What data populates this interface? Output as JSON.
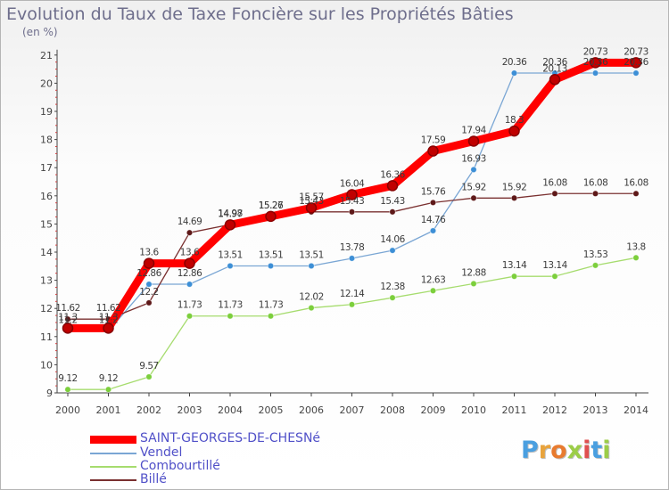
{
  "chart_data": {
    "type": "line",
    "title": "Evolution du Taux de Taxe Foncière sur les Propriétés Bâties",
    "unit_label": "(en %)",
    "x": [
      "2000",
      "2001",
      "2002",
      "2003",
      "2004",
      "2005",
      "2006",
      "2007",
      "2008",
      "2009",
      "2010",
      "2011",
      "2012",
      "2013",
      "2014"
    ],
    "ylim": [
      9,
      21
    ],
    "yticks": [
      9,
      10,
      11,
      12,
      13,
      14,
      15,
      16,
      17,
      18,
      19,
      20,
      21
    ],
    "grid": false,
    "legend_position": "bottom-left",
    "series": [
      {
        "name": "SAINT-GEORGES-DE-CHESNé",
        "color": "#ff0000",
        "marker": "#c00000",
        "values": [
          11.3,
          11.3,
          13.6,
          13.6,
          14.97,
          15.27,
          15.57,
          16.04,
          16.36,
          17.59,
          17.94,
          18.3,
          20.13,
          20.73,
          20.73
        ],
        "labels": [
          "11.3",
          "11.3",
          "13.6",
          "13.6",
          "14.97",
          "15.27",
          "15.57",
          "16.04",
          "16.36",
          "17.59",
          "17.94",
          "18.3",
          "20.13",
          "20.73",
          "20.73"
        ]
      },
      {
        "name": "Vendel",
        "color": "#7aa6d4",
        "marker": "#3d8fd6",
        "values": [
          11.2,
          11.2,
          12.86,
          12.86,
          13.51,
          13.51,
          13.51,
          13.78,
          14.06,
          14.76,
          16.93,
          20.36,
          20.36,
          20.36,
          20.36
        ],
        "labels": [
          "11.2",
          "11.2",
          "12.86",
          "12.86",
          "13.51",
          "13.51",
          "13.51",
          "13.78",
          "14.06",
          "14.76",
          "16.93",
          "20.36",
          "20.36",
          "20.36",
          "20.36"
        ]
      },
      {
        "name": "Combourtillé",
        "color": "#a6dc6e",
        "marker": "#7ccf3c",
        "values": [
          9.12,
          9.12,
          9.57,
          11.73,
          11.73,
          11.73,
          12.02,
          12.14,
          12.38,
          12.63,
          12.88,
          13.14,
          13.14,
          13.53,
          13.8
        ],
        "labels": [
          "9.12",
          "9.12",
          "9.57",
          "11.73",
          "11.73",
          "11.73",
          "12.02",
          "12.14",
          "12.38",
          "12.63",
          "12.88",
          "13.14",
          "13.14",
          "13.53",
          "13.8"
        ]
      },
      {
        "name": "Billé",
        "color": "#7a3030",
        "marker": "#5e1818",
        "values": [
          11.62,
          11.62,
          12.2,
          14.69,
          14.98,
          15.26,
          15.43,
          15.43,
          15.43,
          15.76,
          15.92,
          15.92,
          16.08,
          16.08,
          16.08
        ],
        "labels": [
          "11.62",
          "11.62",
          "12.2",
          "14.69",
          "14.98",
          "15.26",
          "15.43",
          "15.43",
          "15.43",
          "15.76",
          "15.92",
          "15.92",
          "16.08",
          "16.08",
          "16.08"
        ]
      }
    ]
  },
  "logo": {
    "chars": [
      "P",
      "r",
      "o",
      "x",
      "i",
      "t",
      "i"
    ],
    "colors": [
      "#4a9fe0",
      "#e8a33c",
      "#e87b2f",
      "#9ccd48",
      "#e05050",
      "#4a9fe0",
      "#9ccd48"
    ]
  }
}
